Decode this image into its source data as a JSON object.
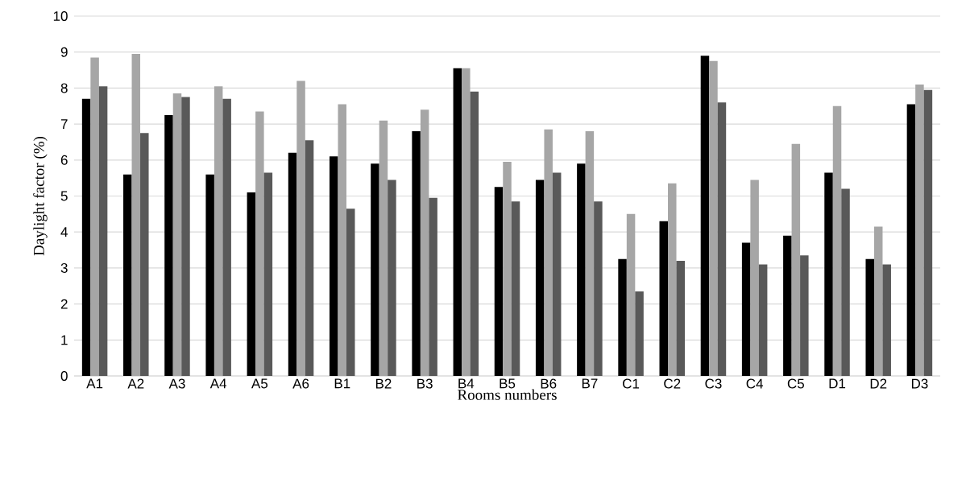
{
  "chart_data": {
    "type": "bar",
    "xlabel": "Rooms numbers",
    "ylabel": "Daylight factor (%)",
    "categories": [
      "A1",
      "A2",
      "A3",
      "A4",
      "A5",
      "A6",
      "B1",
      "B2",
      "B3",
      "B4",
      "B5",
      "B6",
      "B7",
      "C1",
      "C2",
      "C3",
      "C4",
      "C5",
      "D1",
      "D2",
      "D3"
    ],
    "series": [
      {
        "color": "#000000",
        "values": [
          7.7,
          5.6,
          7.25,
          5.6,
          5.1,
          6.2,
          6.1,
          5.9,
          6.8,
          8.55,
          5.25,
          5.45,
          5.9,
          3.25,
          4.3,
          8.9,
          3.7,
          3.9,
          5.65,
          3.25,
          7.55
        ]
      },
      {
        "color": "#a6a6a6",
        "values": [
          8.85,
          8.95,
          7.85,
          8.05,
          7.35,
          8.2,
          7.55,
          7.1,
          7.4,
          8.55,
          5.95,
          6.85,
          6.8,
          4.5,
          5.35,
          8.75,
          5.45,
          6.45,
          7.5,
          4.15,
          8.1
        ]
      },
      {
        "color": "#595959",
        "values": [
          8.05,
          6.75,
          7.75,
          7.7,
          5.65,
          6.55,
          4.65,
          5.45,
          4.95,
          7.9,
          4.85,
          5.65,
          4.85,
          2.35,
          3.2,
          7.6,
          3.1,
          3.35,
          5.2,
          3.1,
          7.95
        ]
      }
    ],
    "ylim": [
      0,
      10
    ],
    "yticks": [
      0,
      1,
      2,
      3,
      4,
      5,
      6,
      7,
      8,
      9,
      10
    ],
    "grid": "y"
  }
}
